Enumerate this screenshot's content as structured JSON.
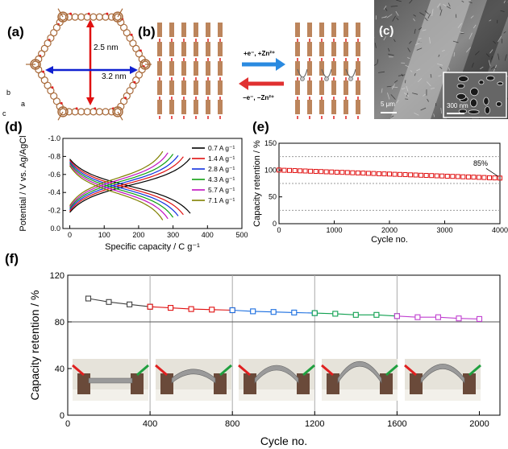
{
  "panels": {
    "a": "(a)",
    "b": "(b)",
    "c": "(c)",
    "d": "(d)",
    "e": "(e)",
    "f": "(f)"
  },
  "panel_a": {
    "dim_vertical": "2.5 nm",
    "dim_horizontal": "3.2 nm",
    "axes": {
      "b": "b",
      "c": "c",
      "a": "a"
    },
    "colors": {
      "vertical_arrow": "#e01010",
      "horizontal_arrow": "#1020d0",
      "carbon": "#a86a3a",
      "oxygen": "#e02020"
    }
  },
  "panel_b": {
    "charge_label": "+e⁻, +Zn²⁺",
    "discharge_label": "−e⁻, −Zn²⁺",
    "colors": {
      "forward_arrow": "#2a8ae0",
      "backward_arrow": "#e03030"
    }
  },
  "panel_c": {
    "scale_main": "5 μm",
    "scale_inset": "300 nm"
  },
  "chart_data": [
    {
      "id": "d",
      "type": "line",
      "xlabel": "Specific capacity / C g⁻¹",
      "ylabel": "Potential / V vs. Ag/AgCl",
      "xlim": [
        -20,
        500
      ],
      "ylim": [
        -1.0,
        0.0
      ],
      "y_inverted": true,
      "xticks": [
        0,
        100,
        200,
        300,
        400,
        500
      ],
      "yticks": [
        "-1.0",
        "-0.8",
        "-0.6",
        "-0.4",
        "-0.2",
        "0.0"
      ],
      "legend_position": "right",
      "series": [
        {
          "name": "0.7 A g⁻¹",
          "color": "#000000",
          "capacity": 350
        },
        {
          "name": "1.4 A g⁻¹",
          "color": "#e01010",
          "capacity": 330
        },
        {
          "name": "2.8 A g⁻¹",
          "color": "#1030e0",
          "capacity": 315
        },
        {
          "name": "4.3 A g⁻¹",
          "color": "#10a010",
          "capacity": 300
        },
        {
          "name": "5.7 A g⁻¹",
          "color": "#c010c0",
          "capacity": 285
        },
        {
          "name": "7.1 A g⁻¹",
          "color": "#808000",
          "capacity": 270
        }
      ]
    },
    {
      "id": "e",
      "type": "scatter",
      "xlabel": "Cycle no.",
      "ylabel": "Capacity retention / %",
      "xlim": [
        0,
        4000
      ],
      "ylim": [
        0,
        150
      ],
      "xticks": [
        0,
        1000,
        2000,
        3000,
        4000
      ],
      "yticks": [
        0,
        50,
        100,
        150
      ],
      "annotation": "85%",
      "dashed_gridlines": [
        25,
        75,
        125
      ],
      "color": "#e01010",
      "series": [
        {
          "start": 100,
          "end": 85,
          "points": 43
        }
      ]
    },
    {
      "id": "f",
      "type": "line",
      "xlabel": "Cycle no.",
      "ylabel": "Capacity retention / %",
      "xlim": [
        0,
        2100
      ],
      "ylim": [
        0,
        120
      ],
      "xticks": [
        0,
        400,
        800,
        1200,
        1600,
        2000
      ],
      "yticks": [
        0,
        40,
        80,
        120
      ],
      "reference_line": 80,
      "vertical_lines": [
        400,
        800,
        1200,
        1600
      ],
      "series": [
        {
          "color": "#404040",
          "x": [
            100,
            200,
            300,
            400
          ],
          "y": [
            100,
            97,
            95,
            93
          ]
        },
        {
          "color": "#e01010",
          "x": [
            400,
            500,
            600,
            700,
            800
          ],
          "y": [
            93,
            92,
            91,
            90.5,
            90
          ]
        },
        {
          "color": "#1a6ee0",
          "x": [
            800,
            900,
            1000,
            1100,
            1200
          ],
          "y": [
            90,
            89,
            88.5,
            88,
            87.5
          ]
        },
        {
          "color": "#10a050",
          "x": [
            1200,
            1300,
            1400,
            1500,
            1600
          ],
          "y": [
            87.5,
            87,
            86,
            86,
            85
          ]
        },
        {
          "color": "#c040d0",
          "x": [
            1600,
            1700,
            1800,
            1900,
            2000
          ],
          "y": [
            85,
            84,
            84,
            83,
            82.5
          ]
        }
      ]
    }
  ]
}
